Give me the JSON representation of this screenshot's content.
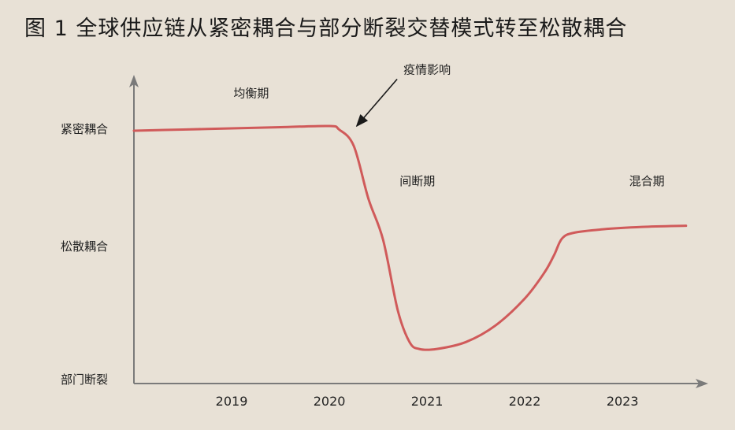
{
  "title": "图 1  全球供应链从紧密耦合与部分断裂交替模式转至松散耦合",
  "chart_data": {
    "type": "line",
    "title": "图 1  全球供应链从紧密耦合与部分断裂交替模式转至松散耦合",
    "y_levels": [
      "部门断裂",
      "松散耦合",
      "紧密耦合"
    ],
    "x_ticks": [
      "2019",
      "2020",
      "2021",
      "2022",
      "2023"
    ],
    "series": [
      {
        "color": "#d05a5a",
        "points": [
          [
            2018.0,
            0.98
          ],
          [
            2018.5,
            0.99
          ],
          [
            2019.0,
            1.0
          ],
          [
            2019.5,
            1.01
          ],
          [
            2020.0,
            1.02
          ],
          [
            2020.1,
            0.99
          ],
          [
            2020.25,
            0.85
          ],
          [
            2020.4,
            0.4
          ],
          [
            2020.55,
            0.05
          ],
          [
            2020.7,
            -0.55
          ],
          [
            2020.82,
            -0.82
          ],
          [
            2020.92,
            -0.88
          ],
          [
            2021.1,
            -0.88
          ],
          [
            2021.4,
            -0.82
          ],
          [
            2021.7,
            -0.68
          ],
          [
            2022.0,
            -0.45
          ],
          [
            2022.2,
            -0.23
          ],
          [
            2022.3,
            -0.08
          ],
          [
            2022.38,
            0.06
          ],
          [
            2022.5,
            0.11
          ],
          [
            2022.8,
            0.14
          ],
          [
            2023.2,
            0.16
          ],
          [
            2023.65,
            0.17
          ]
        ]
      }
    ],
    "annotations": [
      {
        "text": "均衡期",
        "x": 2019.2,
        "y": 1.3
      },
      {
        "text": "疫情影响",
        "x": 2021.0,
        "y": 1.5,
        "arrow_to": [
          2020.28,
          1.02
        ]
      },
      {
        "text": "间断期",
        "x": 2020.9,
        "y": 0.55
      },
      {
        "text": "混合期",
        "x": 2023.25,
        "y": 0.55
      }
    ],
    "ylabel": "",
    "xlabel": ""
  },
  "colors": {
    "background": "#e8e1d6",
    "axis": "#7a7a7a",
    "line": "#d05a5a",
    "text": "#222222"
  }
}
